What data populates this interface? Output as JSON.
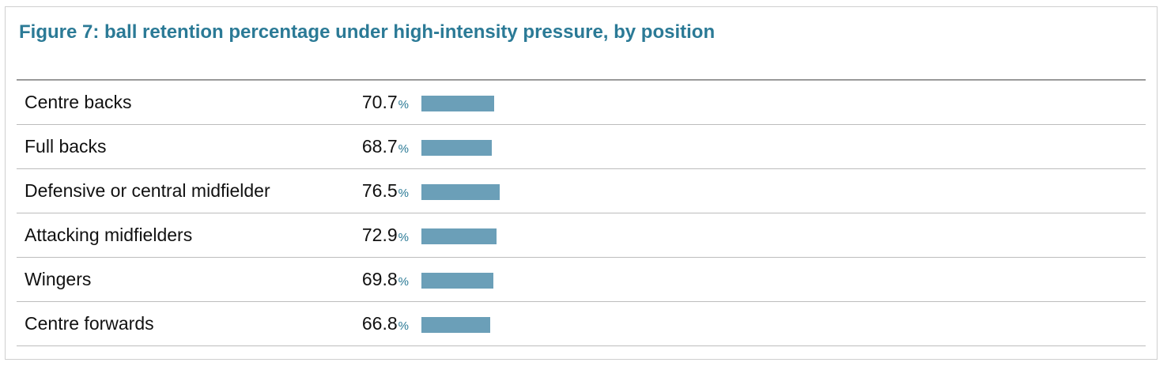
{
  "chart_data": {
    "type": "bar",
    "orientation": "horizontal",
    "title": "Figure 7: ball retention percentage under high-intensity pressure, by position",
    "categories": [
      "Centre backs",
      "Full backs",
      "Defensive or central midfielder",
      "Attacking midfielders",
      "Wingers",
      "Centre forwards"
    ],
    "values": [
      70.7,
      68.7,
      76.5,
      72.9,
      69.8,
      66.8
    ],
    "value_labels": [
      "70.7",
      "68.7",
      "76.5",
      "72.9",
      "69.8",
      "66.8"
    ],
    "unit": "%",
    "xlim": [
      0,
      100
    ],
    "grid": false,
    "legend": "none",
    "colors": {
      "title": "#2b7a96",
      "bar": "#6b9fb8",
      "unit": "#2b7a96"
    }
  }
}
